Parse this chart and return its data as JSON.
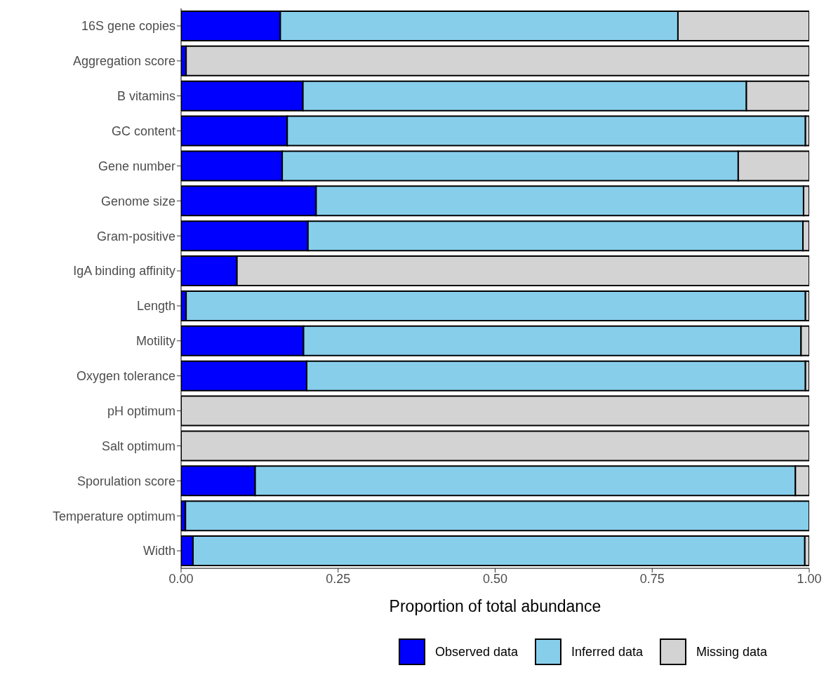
{
  "chart_data": {
    "type": "bar",
    "orientation": "horizontal",
    "stacked": true,
    "xlabel": "Proportion of total abundance",
    "categories": [
      "16S gene copies",
      "Aggregation score",
      "B vitamins",
      "GC content",
      "Gene number",
      "Genome size",
      "Gram-positive",
      "IgA binding affinity",
      "Length",
      "Motility",
      "Oxygen tolerance",
      "pH optimum",
      "Salt optimum",
      "Sporulation score",
      "Temperature optimum",
      "Width"
    ],
    "series": [
      {
        "name": "Observed data",
        "color": "#0000ff",
        "values": [
          0.158,
          0.008,
          0.194,
          0.169,
          0.161,
          0.215,
          0.202,
          0.089,
          0.008,
          0.195,
          0.2,
          0,
          0,
          0.118,
          0.007,
          0.019
        ]
      },
      {
        "name": "Inferred data",
        "color": "#87ceeb",
        "values": [
          0.633,
          0,
          0.706,
          0.825,
          0.726,
          0.776,
          0.788,
          0,
          0.986,
          0.792,
          0.794,
          0,
          0,
          0.86,
          0.993,
          0.974
        ]
      },
      {
        "name": "Missing data",
        "color": "#d3d3d3",
        "values": [
          0.209,
          0.992,
          0.1,
          0.006,
          0.113,
          0.009,
          0.01,
          0.911,
          0.006,
          0.013,
          0.006,
          1,
          1,
          0.022,
          0,
          0.007
        ]
      }
    ],
    "xlim": [
      0,
      1
    ],
    "xticks": [
      {
        "value": 0,
        "label": "0.00"
      },
      {
        "value": 0.25,
        "label": "0.25"
      },
      {
        "value": 0.5,
        "label": "0.50"
      },
      {
        "value": 0.75,
        "label": "0.75"
      },
      {
        "value": 1,
        "label": "1.00"
      }
    ],
    "grid": false,
    "legend": "bottom"
  }
}
